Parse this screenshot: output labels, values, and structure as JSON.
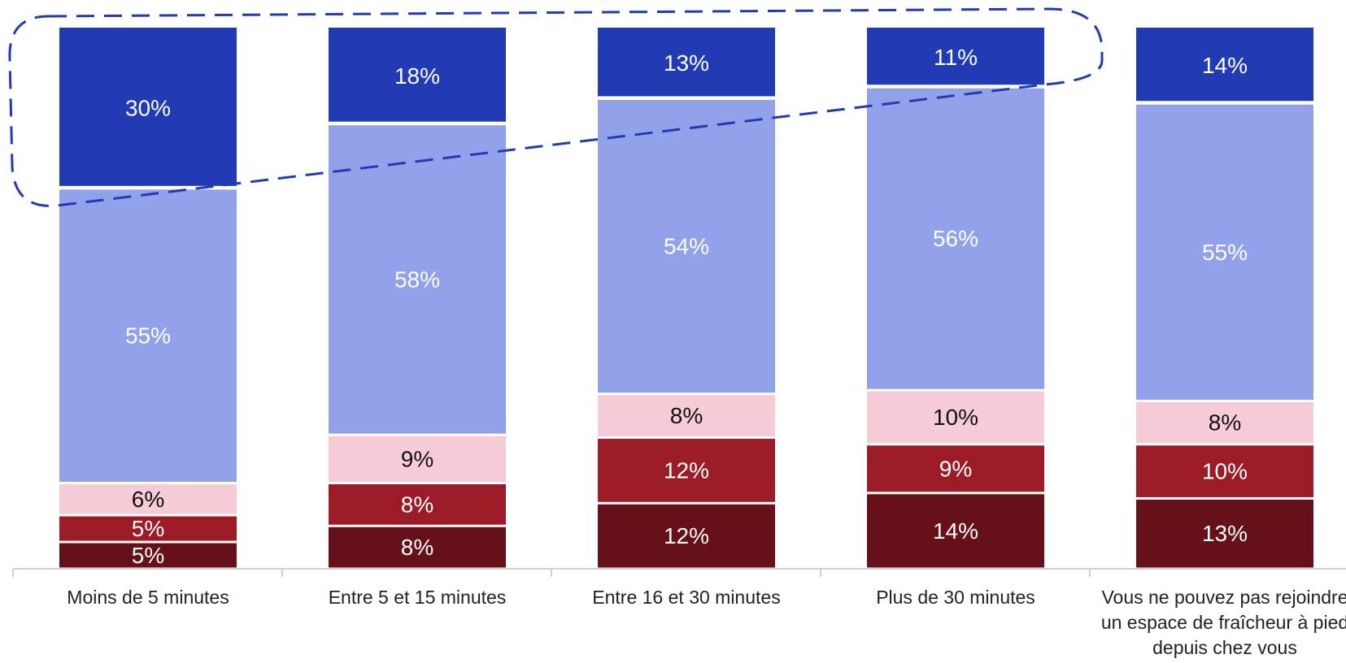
{
  "chart_data": {
    "type": "bar",
    "stacked": true,
    "categories": [
      [
        "Moins de 5 minutes"
      ],
      [
        "Entre 5 et 15 minutes"
      ],
      [
        "Entre 16 et 30 minutes"
      ],
      [
        "Plus de 30 minutes"
      ],
      [
        "Vous ne pouvez pas rejoindre",
        "un espace de fraîcheur à pied",
        "depuis chez vous"
      ]
    ],
    "series": [
      {
        "values": [
          5,
          8,
          12,
          14,
          13
        ],
        "color": "#66111a",
        "label_color": "#ffffff"
      },
      {
        "values": [
          5,
          8,
          12,
          9,
          10
        ],
        "color": "#9b1b27",
        "label_color": "#ffffff"
      },
      {
        "values": [
          6,
          9,
          8,
          10,
          8
        ],
        "color": "#f6cdd6",
        "label_color": "#111111"
      },
      {
        "values": [
          55,
          58,
          54,
          56,
          55
        ],
        "color": "#91a1ea",
        "label_color": "#ffffff"
      },
      {
        "values": [
          30,
          18,
          13,
          11,
          14
        ],
        "color": "#213bb5",
        "label_color": "#ffffff"
      }
    ],
    "value_suffix": "%",
    "axis_color": "#d0d0d0",
    "highlight": {
      "style": "dashed",
      "color": "#213bb5",
      "series": 4,
      "categories": [
        0,
        1,
        2,
        3
      ]
    }
  }
}
